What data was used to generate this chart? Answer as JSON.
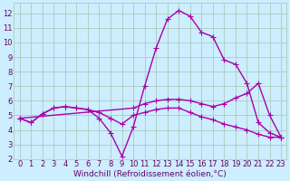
{
  "xlabel": "Windchill (Refroidissement éolien,°C)",
  "ylabel": "",
  "xlim": [
    -0.5,
    23.5
  ],
  "ylim": [
    2,
    12.7
  ],
  "xticks": [
    0,
    1,
    2,
    3,
    4,
    5,
    6,
    7,
    8,
    9,
    10,
    11,
    12,
    13,
    14,
    15,
    16,
    17,
    18,
    19,
    20,
    21,
    22,
    23
  ],
  "yticks": [
    2,
    3,
    4,
    5,
    6,
    7,
    8,
    9,
    10,
    11,
    12
  ],
  "bg_color": "#cceeff",
  "grid_color": "#aaccbb",
  "line_color": "#aa00aa",
  "lines": [
    {
      "x": [
        0,
        1,
        2,
        3,
        4,
        5,
        6,
        7,
        8,
        9,
        10,
        11,
        12,
        13,
        14,
        15,
        16,
        17,
        18,
        19,
        20,
        21,
        22,
        23
      ],
      "y": [
        4.8,
        4.5,
        5.1,
        5.5,
        5.6,
        5.5,
        5.4,
        5.2,
        4.8,
        4.4,
        5.0,
        5.2,
        5.4,
        5.5,
        5.5,
        5.2,
        4.9,
        4.7,
        4.4,
        4.2,
        4.0,
        3.7,
        3.5,
        3.5
      ]
    },
    {
      "x": [
        0,
        1,
        2,
        3,
        4,
        5,
        6,
        7,
        8,
        9,
        10,
        11,
        12,
        13,
        14,
        15,
        16,
        17,
        18,
        19,
        20,
        21,
        22,
        23
      ],
      "y": [
        4.8,
        4.5,
        5.1,
        5.5,
        5.6,
        5.5,
        5.4,
        4.8,
        3.8,
        2.2,
        4.2,
        7.0,
        9.6,
        11.6,
        12.2,
        11.8,
        10.7,
        10.4,
        8.8,
        8.5,
        7.2,
        4.5,
        3.8,
        3.5
      ]
    },
    {
      "x": [
        0,
        10,
        11,
        12,
        13,
        14,
        15,
        16,
        17,
        18,
        19,
        20,
        21,
        22,
        23
      ],
      "y": [
        4.8,
        5.5,
        5.8,
        6.0,
        6.1,
        6.1,
        6.0,
        5.8,
        5.6,
        5.8,
        6.2,
        6.5,
        7.2,
        5.0,
        3.5
      ]
    }
  ],
  "marker": "+",
  "markersize": 4,
  "linewidth": 1.0,
  "font_color": "#660066",
  "tick_fontsize": 6,
  "label_fontsize": 6.5
}
